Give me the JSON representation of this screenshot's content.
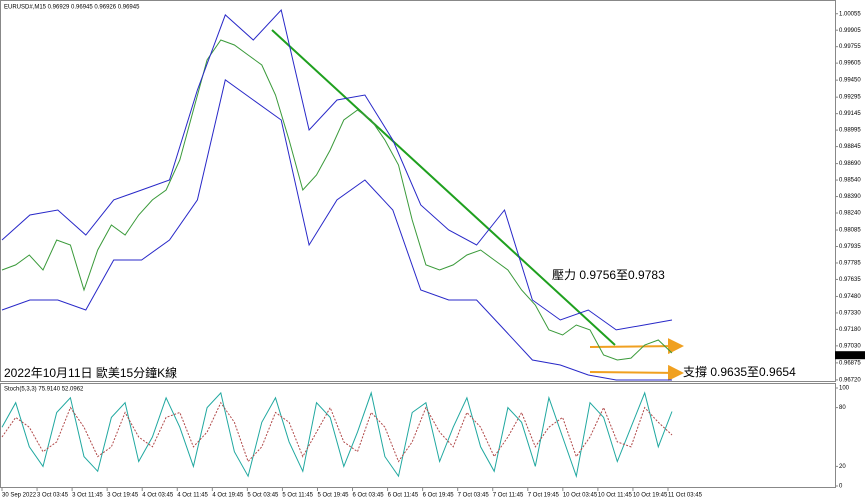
{
  "chart_data": [
    {
      "type": "line",
      "title": "EURUSD#,M15  0.96929 0.96945 0.96926 0.96945",
      "caption": "2022年10月11日 歐美15分鐘K線",
      "annotations": [
        "壓力 0.9756至0.9783",
        "支撐 0.9635至0.9654"
      ],
      "last_price": 0.96945,
      "ylim": [
        0.9671,
        1.0018
      ],
      "yticks": [
        1.00055,
        0.99905,
        0.99755,
        0.99605,
        {
          "value": 0.9945,
          "label": "0.99450"
        },
        0.99295,
        0.99145,
        0.98995,
        0.98845,
        {
          "value": 0.9869,
          "label": "0.98690"
        },
        {
          "value": 0.9854,
          "label": "0.98540"
        },
        {
          "value": 0.9839,
          "label": "0.98390"
        },
        {
          "value": 0.9824,
          "label": "0.98240"
        },
        0.98085,
        0.97935,
        0.97785,
        0.97635,
        {
          "value": 0.9748,
          "label": "0.97480"
        },
        {
          "value": 0.9733,
          "label": "0.97330"
        },
        {
          "value": 0.9718,
          "label": "0.97180"
        },
        {
          "value": 0.9703,
          "label": "0.97030"
        },
        0.96875,
        {
          "value": 0.9672,
          "label": "0.96720"
        }
      ],
      "xticks": [
        "30 Sep 2022",
        "3 Oct 03:45",
        "3 Oct 11:45",
        "3 Oct 19:45",
        "4 Oct 03:45",
        "4 Oct 11:45",
        "4 Oct 19:45",
        "5 Oct 03:45",
        "5 Oct 11:45",
        "5 Oct 19:45",
        "6 Oct 03:45",
        "6 Oct 11:45",
        "6 Oct 19:45",
        "7 Oct 03:45",
        "7 Oct 11:45",
        "7 Oct 19:45",
        "10 Oct 03:45",
        "10 Oct 11:45",
        "10 Oct 19:45",
        "11 Oct 03:45"
      ],
      "series": [
        {
          "color": "#3a9a3a",
          "values": [
            0.97721,
            0.97767,
            0.97858,
            0.97721,
            0.97994,
            0.97949,
            0.97539,
            0.97903,
            0.98131,
            0.9804,
            0.98222,
            0.98359,
            0.9845,
            0.98723,
            0.99178,
            0.99634,
            0.99816,
            0.9977,
            0.99679,
            0.99588,
            0.99315,
            0.98905,
            0.9845,
            0.98586,
            0.98814,
            0.99087,
            0.99178,
            0.99087,
            0.98905,
            0.98677,
            0.98176,
            0.97767,
            0.97721,
            0.97767,
            0.97858,
            0.97903,
            0.97812,
            0.97721,
            0.97539,
            0.97402,
            0.97175,
            0.97129,
            0.9722,
            0.97175,
            0.96947,
            0.96901,
            0.96919,
            0.97038,
            0.97083,
            0.96965
          ]
        },
        {
          "color": "#2828c8",
          "values": [
            0.97994,
            0.98222,
            0.98267,
            0.9804,
            0.98359,
            0.9845,
            0.98541,
            0.9936,
            1.00044,
            0.99816,
            1.00089,
            0.98996,
            0.99269,
            0.99315,
            0.98905,
            0.98313,
            0.98085,
            0.97949,
            0.98267,
            0.97448,
            0.97266,
            0.97357,
            0.97175,
            0.9722,
            0.97266
          ]
        },
        {
          "color": "#2828c8",
          "values": [
            0.97357,
            0.97448,
            0.97448,
            0.97357,
            0.97812,
            0.97812,
            0.97994,
            0.98359,
            0.99452,
            0.99269,
            0.99087,
            0.97949,
            0.98359,
            0.98541,
            0.98267,
            0.97539,
            0.97448,
            0.97448,
            0.97175,
            0.96901,
            0.96856,
            0.96765,
            0.96719,
            0.96719,
            0.96719
          ]
        }
      ]
    },
    {
      "type": "line",
      "title": "Stoch(5,3,3) 75.9140 52.0962",
      "ylim": [
        0,
        100
      ],
      "yticks": [
        100,
        80,
        20,
        0
      ],
      "series": [
        {
          "color": "#20a8a0",
          "values": [
            60,
            85,
            40,
            20,
            75,
            90,
            30,
            15,
            70,
            85,
            25,
            50,
            90,
            60,
            20,
            80,
            95,
            35,
            10,
            65,
            90,
            45,
            15,
            85,
            70,
            20,
            55,
            95,
            30,
            10,
            75,
            85,
            25,
            60,
            90,
            40,
            15,
            80,
            65,
            20,
            90,
            50,
            10,
            85,
            70,
            25,
            60,
            95,
            40,
            76
          ]
        },
        {
          "color": "#b04848",
          "dashed": true,
          "values": [
            50,
            70,
            60,
            35,
            45,
            80,
            60,
            30,
            40,
            75,
            50,
            40,
            70,
            75,
            40,
            55,
            85,
            65,
            25,
            40,
            75,
            65,
            30,
            55,
            80,
            45,
            35,
            75,
            60,
            25,
            45,
            80,
            55,
            40,
            75,
            60,
            30,
            50,
            75,
            40,
            60,
            70,
            30,
            50,
            80,
            45,
            40,
            80,
            65,
            52
          ]
        }
      ]
    }
  ]
}
